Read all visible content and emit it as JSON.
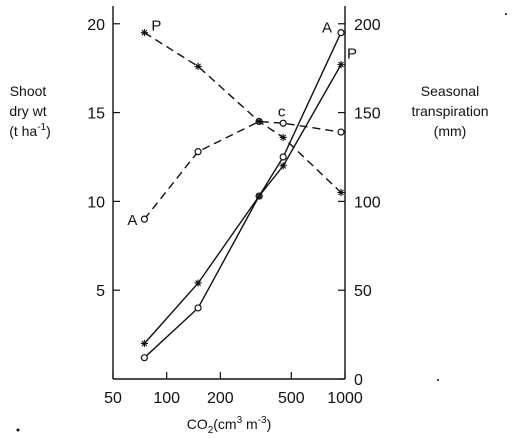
{
  "chart_data": {
    "type": "line",
    "xlabel_parts": [
      "CO",
      "2",
      "(cm",
      "3",
      " m",
      "-3",
      ")"
    ],
    "ylabel_left": [
      "Shoot",
      "dry wt",
      "(t  ha",
      "-1",
      ")"
    ],
    "ylabel_right": [
      "Seasonal",
      "transpiration",
      "(mm)"
    ],
    "x_scale": "log",
    "xlim": [
      50,
      1000
    ],
    "x_ticks": [
      50,
      100,
      200,
      500,
      1000
    ],
    "x_tick_labels": [
      "50",
      "100",
      "200",
      "500",
      "1000"
    ],
    "ylim_left": [
      0,
      21
    ],
    "y_ticks_left": [
      5,
      10,
      15,
      20
    ],
    "y_tick_labels_left": [
      "5",
      "10",
      "15",
      "20"
    ],
    "ylim_right": [
      0,
      210
    ],
    "y_ticks_right": [
      0,
      50,
      100,
      150,
      200
    ],
    "y_tick_labels_right": [
      "0",
      "50",
      "100",
      "150",
      "200"
    ],
    "series": [
      {
        "label": "A",
        "axis": "left",
        "style": "solid",
        "marker": "circle",
        "x": [
          75,
          150,
          330,
          450,
          950
        ],
        "y": [
          1.2,
          4.0,
          10.3,
          12.5,
          19.5
        ]
      },
      {
        "label": "P",
        "axis": "left",
        "style": "solid",
        "marker": "star",
        "x": [
          75,
          150,
          330,
          450,
          950
        ],
        "y": [
          2.0,
          5.4,
          10.3,
          12.0,
          17.7
        ]
      },
      {
        "label": "A",
        "axis": "right",
        "style": "dashed",
        "marker": "circle",
        "x": [
          75,
          150,
          330,
          450,
          950
        ],
        "y": [
          90,
          128,
          145,
          144,
          139
        ]
      },
      {
        "label": "P",
        "axis": "right",
        "style": "dashed",
        "marker": "star",
        "x": [
          75,
          150,
          330,
          450,
          950
        ],
        "y": [
          195,
          176,
          145,
          136,
          105
        ]
      }
    ],
    "annotation": "c"
  }
}
